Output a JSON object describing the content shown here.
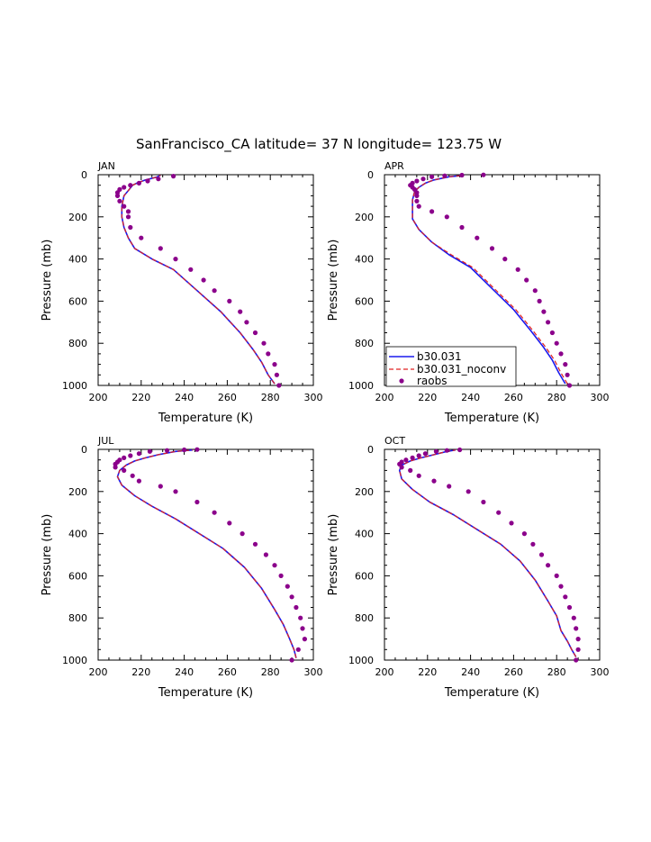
{
  "title": "SanFrancisco_CA  latitude= 37 N longitude= 123.75 W",
  "colors": {
    "model": "#1a1aee",
    "noconv": "#e02020",
    "obs": "#8b008b"
  },
  "legend": [
    "b30.031",
    "b30.031_noconv",
    "raobs"
  ],
  "chart_data": [
    {
      "type": "line",
      "panel": "JAN",
      "xlabel": "Temperature (K)",
      "ylabel": "Pressure (mb)",
      "xlim": [
        200,
        300
      ],
      "ylim": [
        1000,
        0
      ],
      "xticks": [
        "200",
        "220",
        "240",
        "260",
        "280",
        "300"
      ],
      "yticks": [
        "0",
        "200",
        "400",
        "600",
        "800",
        "1000"
      ],
      "series": [
        {
          "name": "b30.031",
          "x": [
            282,
            279,
            276,
            272,
            266,
            257,
            246,
            235,
            225,
            217,
            214,
            212,
            211,
            211,
            212,
            214,
            216,
            218,
            222,
            227,
            229
          ],
          "y": [
            992,
            950,
            890,
            830,
            750,
            650,
            550,
            450,
            400,
            350,
            300,
            250,
            200,
            150,
            100,
            75,
            50,
            40,
            25,
            12,
            3
          ]
        },
        {
          "name": "b30.031_noconv",
          "x": [
            282,
            279,
            276,
            272,
            266,
            257,
            246,
            235,
            225,
            217,
            214,
            212,
            211,
            211,
            212,
            214,
            216,
            218,
            222,
            227,
            229
          ],
          "y": [
            992,
            950,
            890,
            830,
            750,
            650,
            550,
            450,
            400,
            350,
            300,
            250,
            200,
            150,
            100,
            75,
            50,
            40,
            25,
            12,
            3
          ]
        },
        {
          "name": "raobs",
          "x": [
            284,
            283,
            282,
            279,
            277,
            273,
            269,
            266,
            261,
            254,
            249,
            243,
            236,
            229,
            220,
            215,
            214,
            214,
            212,
            210,
            209,
            209,
            210,
            212,
            215,
            219,
            223,
            228,
            235
          ],
          "y": [
            1000,
            950,
            900,
            850,
            800,
            750,
            700,
            650,
            600,
            550,
            500,
            450,
            400,
            350,
            300,
            250,
            200,
            175,
            150,
            125,
            100,
            85,
            70,
            60,
            50,
            40,
            30,
            20,
            7
          ]
        }
      ]
    },
    {
      "type": "line",
      "panel": "APR",
      "xlabel": "Temperature (K)",
      "ylabel": "Pressure (mb)",
      "xlim": [
        200,
        300
      ],
      "ylim": [
        1000,
        0
      ],
      "xticks": [
        "200",
        "220",
        "240",
        "260",
        "280",
        "300"
      ],
      "yticks": [
        "0",
        "200",
        "400",
        "600",
        "800",
        "1000"
      ],
      "series": [
        {
          "name": "b30.031",
          "x": [
            284,
            281,
            278,
            274,
            268,
            260,
            250,
            240,
            230,
            222,
            216,
            213,
            213,
            213,
            214,
            216,
            219,
            223,
            230,
            237
          ],
          "y": [
            992,
            940,
            880,
            820,
            740,
            640,
            540,
            440,
            380,
            320,
            260,
            210,
            160,
            120,
            80,
            60,
            40,
            25,
            10,
            3
          ]
        },
        {
          "name": "b30.031_noconv",
          "x": [
            285,
            282,
            279,
            275,
            269,
            261,
            251,
            241,
            231,
            222,
            216,
            213,
            213,
            213,
            214,
            216,
            219,
            223,
            230,
            237
          ],
          "y": [
            992,
            940,
            880,
            820,
            740,
            640,
            540,
            440,
            380,
            320,
            260,
            210,
            160,
            120,
            80,
            60,
            40,
            25,
            10,
            3
          ]
        },
        {
          "name": "raobs",
          "x": [
            286,
            285,
            284,
            282,
            280,
            278,
            276,
            274,
            272,
            270,
            266,
            262,
            256,
            250,
            243,
            236,
            229,
            222,
            216,
            215,
            215,
            215,
            214,
            213,
            212,
            213,
            215,
            218,
            222,
            228,
            236,
            246
          ],
          "y": [
            1000,
            950,
            900,
            850,
            800,
            750,
            700,
            650,
            600,
            550,
            500,
            450,
            400,
            350,
            300,
            250,
            200,
            175,
            150,
            125,
            100,
            85,
            70,
            60,
            50,
            40,
            30,
            20,
            10,
            5,
            2,
            1
          ]
        }
      ]
    },
    {
      "type": "line",
      "panel": "JUL",
      "xlabel": "Temperature (K)",
      "ylabel": "Pressure (mb)",
      "xlim": [
        200,
        300
      ],
      "ylim": [
        1000,
        0
      ],
      "xticks": [
        "200",
        "220",
        "240",
        "260",
        "280",
        "300"
      ],
      "yticks": [
        "0",
        "200",
        "400",
        "600",
        "800",
        "1000"
      ],
      "series": [
        {
          "name": "b30.031",
          "x": [
            292,
            291,
            289,
            286,
            282,
            276,
            268,
            258,
            247,
            236,
            225,
            217,
            211,
            209,
            210,
            213,
            217,
            222,
            228,
            236,
            244
          ],
          "y": [
            990,
            950,
            900,
            830,
            760,
            660,
            560,
            470,
            400,
            330,
            270,
            220,
            170,
            130,
            100,
            75,
            55,
            40,
            25,
            10,
            3
          ]
        },
        {
          "name": "b30.031_noconv",
          "x": [
            292,
            291,
            289,
            286,
            282,
            276,
            268,
            258,
            247,
            236,
            225,
            217,
            211,
            209,
            210,
            213,
            217,
            222,
            228,
            236,
            244
          ],
          "y": [
            990,
            950,
            900,
            830,
            760,
            660,
            560,
            470,
            400,
            330,
            270,
            220,
            170,
            130,
            100,
            75,
            55,
            40,
            25,
            10,
            3
          ]
        },
        {
          "name": "raobs",
          "x": [
            290,
            293,
            296,
            295,
            294,
            292,
            290,
            288,
            285,
            282,
            278,
            273,
            267,
            261,
            254,
            246,
            236,
            229,
            219,
            216,
            212,
            208,
            208,
            209,
            210,
            212,
            215,
            219,
            224,
            232,
            240,
            246
          ],
          "y": [
            1000,
            950,
            900,
            850,
            800,
            750,
            700,
            650,
            600,
            550,
            500,
            450,
            400,
            350,
            300,
            250,
            200,
            175,
            150,
            125,
            100,
            85,
            70,
            60,
            50,
            40,
            30,
            20,
            10,
            5,
            2,
            1
          ]
        }
      ]
    },
    {
      "type": "line",
      "panel": "OCT",
      "xlabel": "Temperature (K)",
      "ylabel": "Pressure (mb)",
      "xlim": [
        200,
        300
      ],
      "ylim": [
        1000,
        0
      ],
      "xticks": [
        "200",
        "220",
        "240",
        "260",
        "280",
        "300"
      ],
      "yticks": [
        "0",
        "200",
        "400",
        "600",
        "800",
        "1000"
      ],
      "series": [
        {
          "name": "b30.031",
          "x": [
            289,
            287,
            285,
            282,
            280,
            276,
            270,
            263,
            254,
            243,
            232,
            221,
            213,
            208,
            207,
            208,
            212,
            217,
            223,
            229,
            233
          ],
          "y": [
            985,
            950,
            910,
            860,
            790,
            720,
            620,
            530,
            450,
            380,
            310,
            250,
            190,
            140,
            100,
            75,
            55,
            40,
            25,
            10,
            3
          ]
        },
        {
          "name": "b30.031_noconv",
          "x": [
            289,
            287,
            285,
            282,
            280,
            276,
            270,
            263,
            254,
            243,
            232,
            221,
            213,
            208,
            207,
            208,
            212,
            217,
            223,
            229,
            233
          ],
          "y": [
            985,
            950,
            910,
            860,
            790,
            720,
            620,
            530,
            450,
            380,
            310,
            250,
            190,
            140,
            100,
            75,
            55,
            40,
            25,
            10,
            3
          ]
        },
        {
          "name": "raobs",
          "x": [
            289,
            290,
            290,
            289,
            288,
            286,
            284,
            282,
            280,
            276,
            273,
            269,
            265,
            259,
            253,
            246,
            239,
            230,
            223,
            216,
            212,
            208,
            207,
            208,
            210,
            213,
            216,
            219,
            224,
            229,
            235
          ],
          "y": [
            1000,
            950,
            900,
            850,
            800,
            750,
            700,
            650,
            600,
            550,
            500,
            450,
            400,
            350,
            300,
            250,
            200,
            175,
            150,
            125,
            100,
            85,
            70,
            60,
            50,
            40,
            30,
            20,
            10,
            5,
            2
          ]
        }
      ]
    }
  ]
}
